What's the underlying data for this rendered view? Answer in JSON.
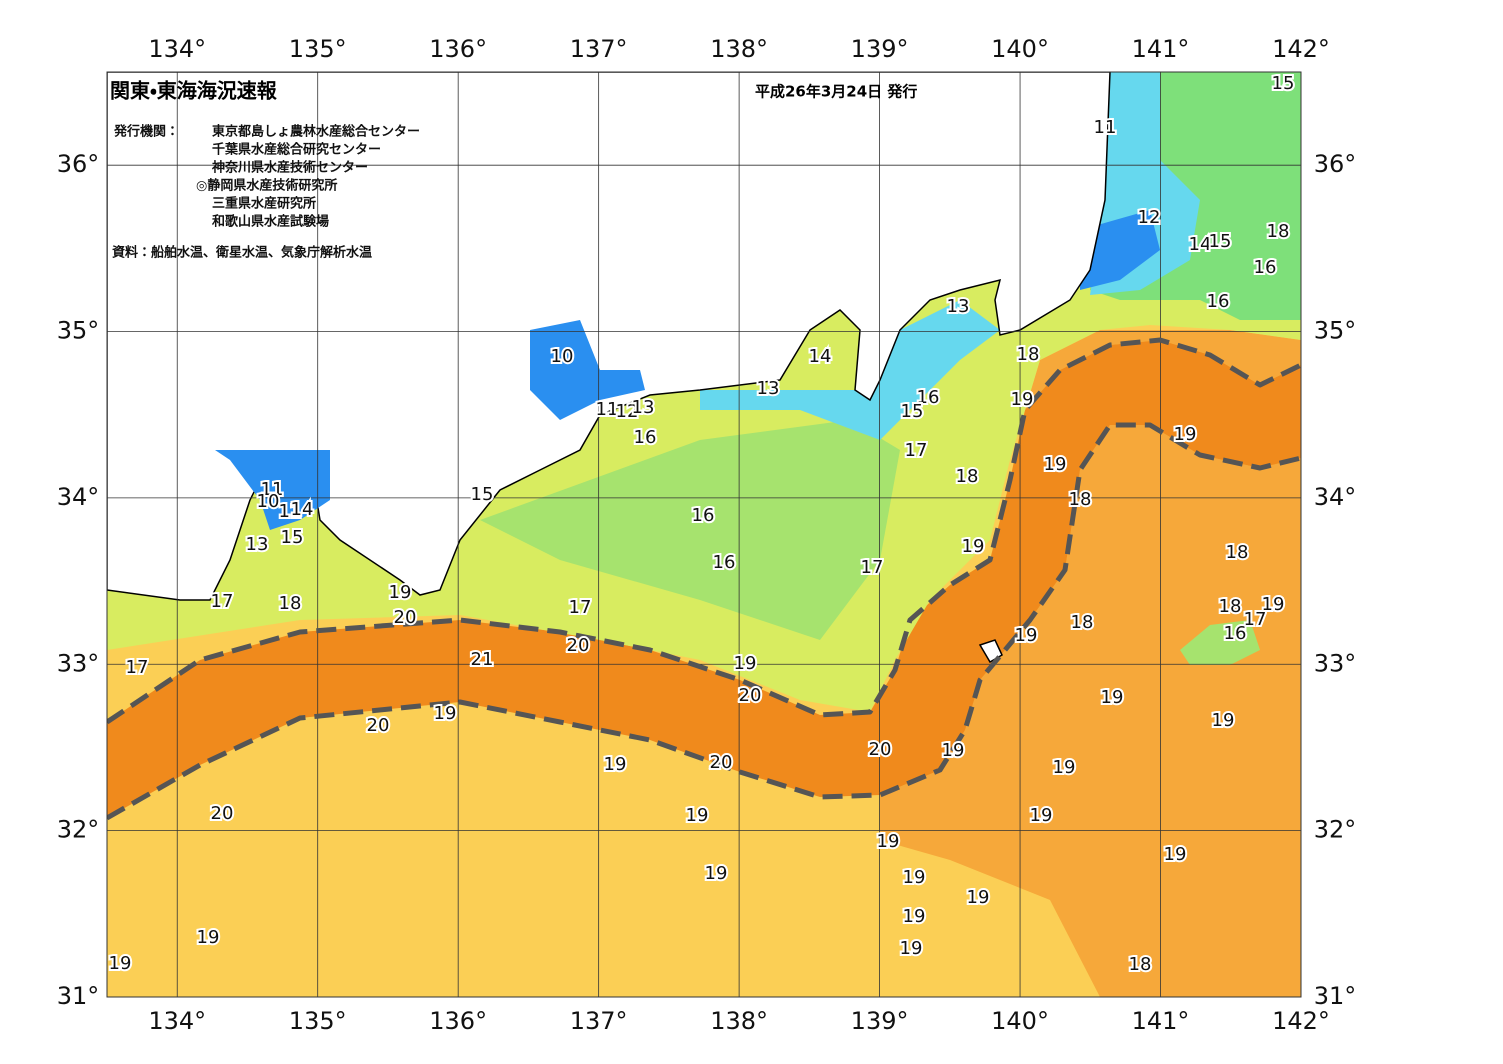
{
  "header": {
    "title": "関東・東海海況速報",
    "issued": "平成26年3月24日 発行"
  },
  "issuers": {
    "label": "発行機関：",
    "names": [
      "東京都島しょ農林水産総合センター",
      "千葉県水産総合研究センター",
      "神奈川県水産技術センター",
      "◎静岡県水産技術研究所",
      "三重県水産研究所",
      "和歌山県水産試験場"
    ]
  },
  "sources": "資料：船舶水温、衛星水温、気象庁解析水温",
  "map": {
    "lonlim": [
      133.5,
      142
    ],
    "latlim": [
      31,
      36.56
    ],
    "lon_ticks": [
      {
        "value": 134,
        "label": "134°"
      },
      {
        "value": 135,
        "label": "135°"
      },
      {
        "value": 136,
        "label": "136°"
      },
      {
        "value": 137,
        "label": "137°"
      },
      {
        "value": 138,
        "label": "138°"
      },
      {
        "value": 139,
        "label": "139°"
      },
      {
        "value": 140,
        "label": "140°"
      },
      {
        "value": 141,
        "label": "141°"
      },
      {
        "value": 142,
        "label": "142°"
      }
    ],
    "lat_ticks": [
      {
        "value": 31,
        "label": "31°"
      },
      {
        "value": 32,
        "label": "32°"
      },
      {
        "value": 33,
        "label": "33°"
      },
      {
        "value": 34,
        "label": "34°"
      },
      {
        "value": 35,
        "label": "35°"
      },
      {
        "value": 36,
        "label": "36°"
      }
    ],
    "contour_labels": [
      15,
      11,
      12,
      14,
      15,
      18,
      16,
      16,
      13,
      18,
      14,
      10,
      13,
      19,
      16,
      15,
      11,
      12,
      13,
      16,
      19,
      17,
      19,
      18,
      15,
      18,
      11,
      10,
      11,
      14,
      16,
      15,
      13,
      19,
      18,
      16,
      17,
      19,
      17,
      18,
      17,
      20,
      18,
      19,
      17,
      16,
      18,
      19,
      20,
      21,
      17,
      19,
      20,
      19,
      19,
      19,
      20,
      20,
      19,
      19,
      20,
      19,
      20,
      19,
      19,
      19,
      19,
      19,
      19,
      19,
      19,
      19,
      19,
      19,
      18
    ]
  }
}
